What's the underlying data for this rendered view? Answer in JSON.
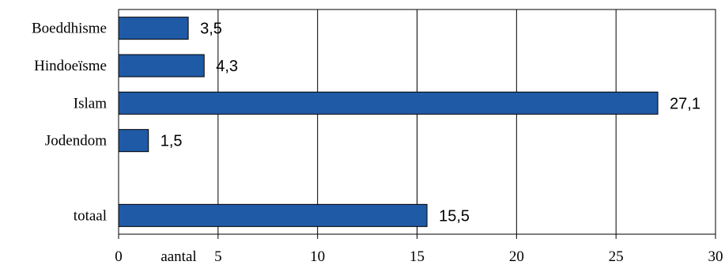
{
  "chart_data": {
    "type": "bar",
    "orientation": "horizontal",
    "categories": [
      "Boeddhisme",
      "Hindoeïsme",
      "Islam",
      "Jodendom",
      "",
      "totaal"
    ],
    "values": [
      3.5,
      4.3,
      27.1,
      1.5,
      null,
      15.5
    ],
    "value_labels": [
      "3,5",
      "4,3",
      "27,1",
      "1,5",
      "",
      "15,5"
    ],
    "xlabel": "aantal",
    "xlim": [
      0,
      30
    ],
    "xticks": [
      0,
      5,
      10,
      15,
      20,
      25,
      30
    ],
    "xtick_labels": [
      "0",
      "5",
      "10",
      "15",
      "20",
      "25",
      "30"
    ],
    "grid": "vertical",
    "colors": {
      "bar": "#1f5aa6",
      "bar_edge": "#000000",
      "grid": "#000000"
    }
  }
}
